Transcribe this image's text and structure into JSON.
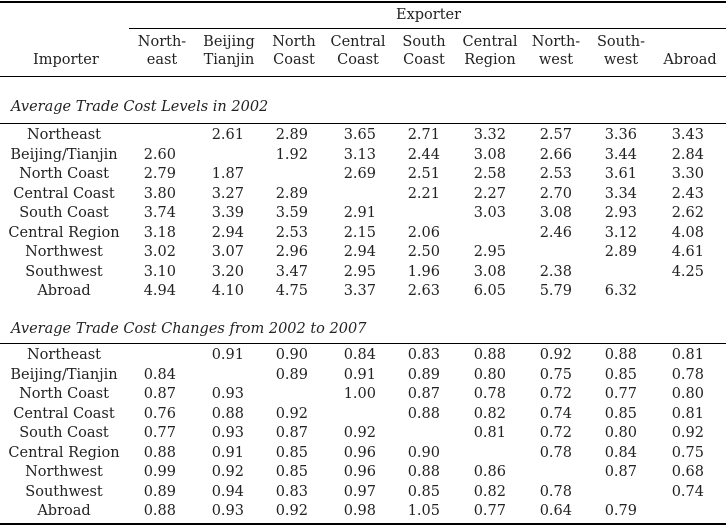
{
  "exporter_label": "Exporter",
  "importer_label": "Importer",
  "columns": [
    [
      "North-",
      "east"
    ],
    [
      "Beijing",
      "Tianjin"
    ],
    [
      "North",
      "Coast"
    ],
    [
      "Central",
      "Coast"
    ],
    [
      "South",
      "Coast"
    ],
    [
      "Central",
      "Region"
    ],
    [
      "North-",
      "west"
    ],
    [
      "South-",
      "west"
    ],
    [
      "",
      "Abroad"
    ]
  ],
  "row_labels": [
    "Northeast",
    "Beijing/Tianjin",
    "North Coast",
    "Central Coast",
    "South Coast",
    "Central Region",
    "Northwest",
    "Southwest",
    "Abroad"
  ],
  "sections": [
    {
      "title": "Average Trade Cost Levels in 2002",
      "rows": [
        [
          "",
          "2.61",
          "2.89",
          "3.65",
          "2.71",
          "3.32",
          "2.57",
          "3.36",
          "3.43"
        ],
        [
          "2.60",
          "",
          "1.92",
          "3.13",
          "2.44",
          "3.08",
          "2.66",
          "3.44",
          "2.84"
        ],
        [
          "2.79",
          "1.87",
          "",
          "2.69",
          "2.51",
          "2.58",
          "2.53",
          "3.61",
          "3.30"
        ],
        [
          "3.80",
          "3.27",
          "2.89",
          "",
          "2.21",
          "2.27",
          "2.70",
          "3.34",
          "2.43"
        ],
        [
          "3.74",
          "3.39",
          "3.59",
          "2.91",
          "",
          "3.03",
          "3.08",
          "2.93",
          "2.62"
        ],
        [
          "3.18",
          "2.94",
          "2.53",
          "2.15",
          "2.06",
          "",
          "2.46",
          "3.12",
          "4.08"
        ],
        [
          "3.02",
          "3.07",
          "2.96",
          "2.94",
          "2.50",
          "2.95",
          "",
          "2.89",
          "4.61"
        ],
        [
          "3.10",
          "3.20",
          "3.47",
          "2.95",
          "1.96",
          "3.08",
          "2.38",
          "",
          "4.25"
        ],
        [
          "4.94",
          "4.10",
          "4.75",
          "3.37",
          "2.63",
          "6.05",
          "5.79",
          "6.32",
          ""
        ]
      ]
    },
    {
      "title": "Average Trade Cost Changes from 2002 to 2007",
      "rows": [
        [
          "",
          "0.91",
          "0.90",
          "0.84",
          "0.83",
          "0.88",
          "0.92",
          "0.88",
          "0.81"
        ],
        [
          "0.84",
          "",
          "0.89",
          "0.91",
          "0.89",
          "0.80",
          "0.75",
          "0.85",
          "0.78"
        ],
        [
          "0.87",
          "0.93",
          "",
          "1.00",
          "0.87",
          "0.78",
          "0.72",
          "0.77",
          "0.80"
        ],
        [
          "0.76",
          "0.88",
          "0.92",
          "",
          "0.88",
          "0.82",
          "0.74",
          "0.85",
          "0.81"
        ],
        [
          "0.77",
          "0.93",
          "0.87",
          "0.92",
          "",
          "0.81",
          "0.72",
          "0.80",
          "0.92"
        ],
        [
          "0.88",
          "0.91",
          "0.85",
          "0.96",
          "0.90",
          "",
          "0.78",
          "0.84",
          "0.75"
        ],
        [
          "0.99",
          "0.92",
          "0.85",
          "0.96",
          "0.88",
          "0.86",
          "",
          "0.87",
          "0.68"
        ],
        [
          "0.89",
          "0.94",
          "0.83",
          "0.97",
          "0.85",
          "0.82",
          "0.78",
          "",
          "0.74"
        ],
        [
          "0.88",
          "0.93",
          "0.92",
          "0.98",
          "1.05",
          "0.77",
          "0.64",
          "0.79",
          ""
        ]
      ]
    }
  ]
}
